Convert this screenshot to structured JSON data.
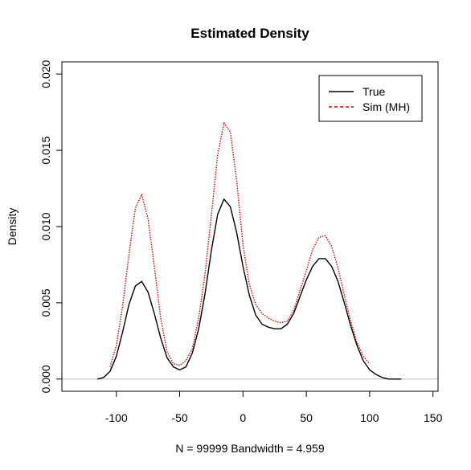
{
  "chart_data": {
    "type": "line",
    "title": "Estimated Density",
    "xlabel": "N = 99999   Bandwidth = 4.959",
    "ylabel": "Density",
    "xlim": [
      -143,
      154
    ],
    "ylim": [
      -0.0008,
      0.0208
    ],
    "x_ticks": [
      -100,
      -50,
      0,
      50,
      100,
      150
    ],
    "x_tick_labels": [
      "-100",
      "-50",
      "0",
      "50",
      "100",
      "150"
    ],
    "y_ticks": [
      0.0,
      0.005,
      0.01,
      0.015,
      0.02
    ],
    "y_tick_labels": [
      "0.000",
      "0.005",
      "0.010",
      "0.015",
      "0.020"
    ],
    "baseline": 0,
    "grid": false,
    "legend": {
      "position": "top-right",
      "entries": [
        {
          "label": "True",
          "color": "#000000",
          "dash": "solid"
        },
        {
          "label": "Sim (MH)",
          "color": "#cc0000",
          "dash": "dashed"
        }
      ]
    },
    "series": [
      {
        "name": "True",
        "color": "#000000",
        "dash": "solid",
        "x": [
          -115,
          -110,
          -105,
          -100,
          -95,
          -90,
          -85,
          -80,
          -75,
          -70,
          -65,
          -60,
          -55,
          -50,
          -45,
          -40,
          -35,
          -30,
          -25,
          -20,
          -15,
          -10,
          -5,
          0,
          5,
          10,
          15,
          20,
          25,
          30,
          35,
          40,
          45,
          50,
          55,
          60,
          65,
          70,
          75,
          80,
          85,
          90,
          95,
          100,
          105,
          110,
          115,
          120,
          125
        ],
        "y": [
          0.0,
          0.0001,
          0.0005,
          0.0015,
          0.0031,
          0.0049,
          0.0061,
          0.0064,
          0.0057,
          0.0043,
          0.0027,
          0.0014,
          0.0008,
          0.0006,
          0.0008,
          0.0017,
          0.0033,
          0.0056,
          0.0084,
          0.0108,
          0.0118,
          0.0113,
          0.0096,
          0.0074,
          0.0055,
          0.0042,
          0.0036,
          0.0034,
          0.0033,
          0.0033,
          0.0036,
          0.0043,
          0.0054,
          0.0065,
          0.0074,
          0.0079,
          0.0079,
          0.0074,
          0.0064,
          0.005,
          0.0035,
          0.0022,
          0.0012,
          0.0006,
          0.0003,
          0.0001,
          0.0,
          0.0,
          0.0
        ]
      },
      {
        "name": "Sim (MH)",
        "color": "#cc0000",
        "dash": "dashed",
        "x": [
          -105,
          -100,
          -95,
          -90,
          -85,
          -80,
          -75,
          -70,
          -65,
          -60,
          -55,
          -50,
          -45,
          -40,
          -35,
          -30,
          -25,
          -20,
          -15,
          -10,
          -5,
          0,
          5,
          10,
          15,
          20,
          25,
          30,
          35,
          40,
          45,
          50,
          55,
          60,
          65,
          70,
          75,
          80,
          85,
          90,
          95,
          100
        ],
        "y": [
          0.0008,
          0.0022,
          0.0048,
          0.0082,
          0.0112,
          0.0121,
          0.0105,
          0.0074,
          0.004,
          0.0018,
          0.001,
          0.0009,
          0.0012,
          0.002,
          0.004,
          0.0069,
          0.0107,
          0.0147,
          0.0168,
          0.0162,
          0.013,
          0.0088,
          0.0062,
          0.0049,
          0.0043,
          0.004,
          0.0038,
          0.0037,
          0.0038,
          0.0045,
          0.0058,
          0.0071,
          0.0085,
          0.0093,
          0.0094,
          0.0087,
          0.0073,
          0.0055,
          0.0038,
          0.0024,
          0.0015,
          0.001
        ]
      }
    ]
  }
}
